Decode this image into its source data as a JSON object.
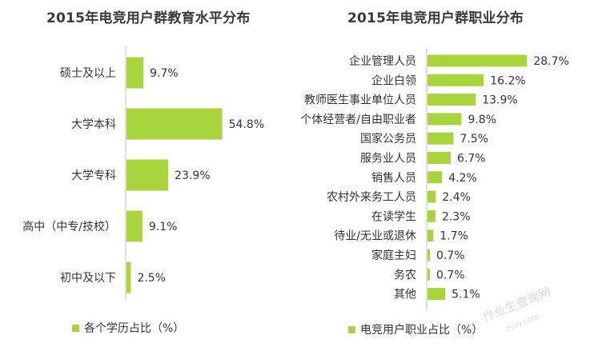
{
  "chart_data": [
    {
      "type": "bar",
      "orientation": "horizontal",
      "title": "2015年电竞用户群教育水平分布",
      "categories": [
        "硕士及以上",
        "大学本科",
        "大学专科",
        "高中（中专/技校）",
        "初中及以下"
      ],
      "value_labels": [
        "9.7%",
        "54.8%",
        "23.9%",
        "9.1%",
        "2.5%"
      ],
      "series": [
        {
          "name": "各个学历占比（%）",
          "values": [
            9.7,
            54.8,
            23.9,
            9.1,
            2.5
          ]
        }
      ],
      "xlim": [
        0,
        60
      ],
      "grid": false,
      "legend": "bottom",
      "bar_color": "#a8d53b"
    },
    {
      "type": "bar",
      "orientation": "horizontal",
      "title": "2015年电竞用户群职业分布",
      "categories": [
        "企业管理人员",
        "企业白领",
        "教师医生事业单位人员",
        "个体经营者/自由职业者",
        "国家公务员",
        "服务业人员",
        "销售人员",
        "农村外来务工人员",
        "在读学生",
        "待业/无业或退休",
        "家庭主妇",
        "务农",
        "其他"
      ],
      "value_labels": [
        "28.7%",
        "16.2%",
        "13.9%",
        "9.8%",
        "7.5%",
        "6.7%",
        "4.2%",
        "2.4%",
        "2.3%",
        "1.7%",
        "0.7%",
        "0.7%",
        "5.1%"
      ],
      "series": [
        {
          "name": "电竞用户职业占比（%）",
          "values": [
            28.7,
            16.2,
            13.9,
            9.8,
            7.5,
            6.7,
            4.2,
            2.4,
            2.3,
            1.7,
            0.7,
            0.7,
            5.1
          ]
        }
      ],
      "xlim": [
        0,
        30
      ],
      "grid": false,
      "legend": "bottom",
      "bar_color": "#a8d53b"
    }
  ],
  "watermark": "作业生查询网",
  "watermark_url": "zsvv.com"
}
